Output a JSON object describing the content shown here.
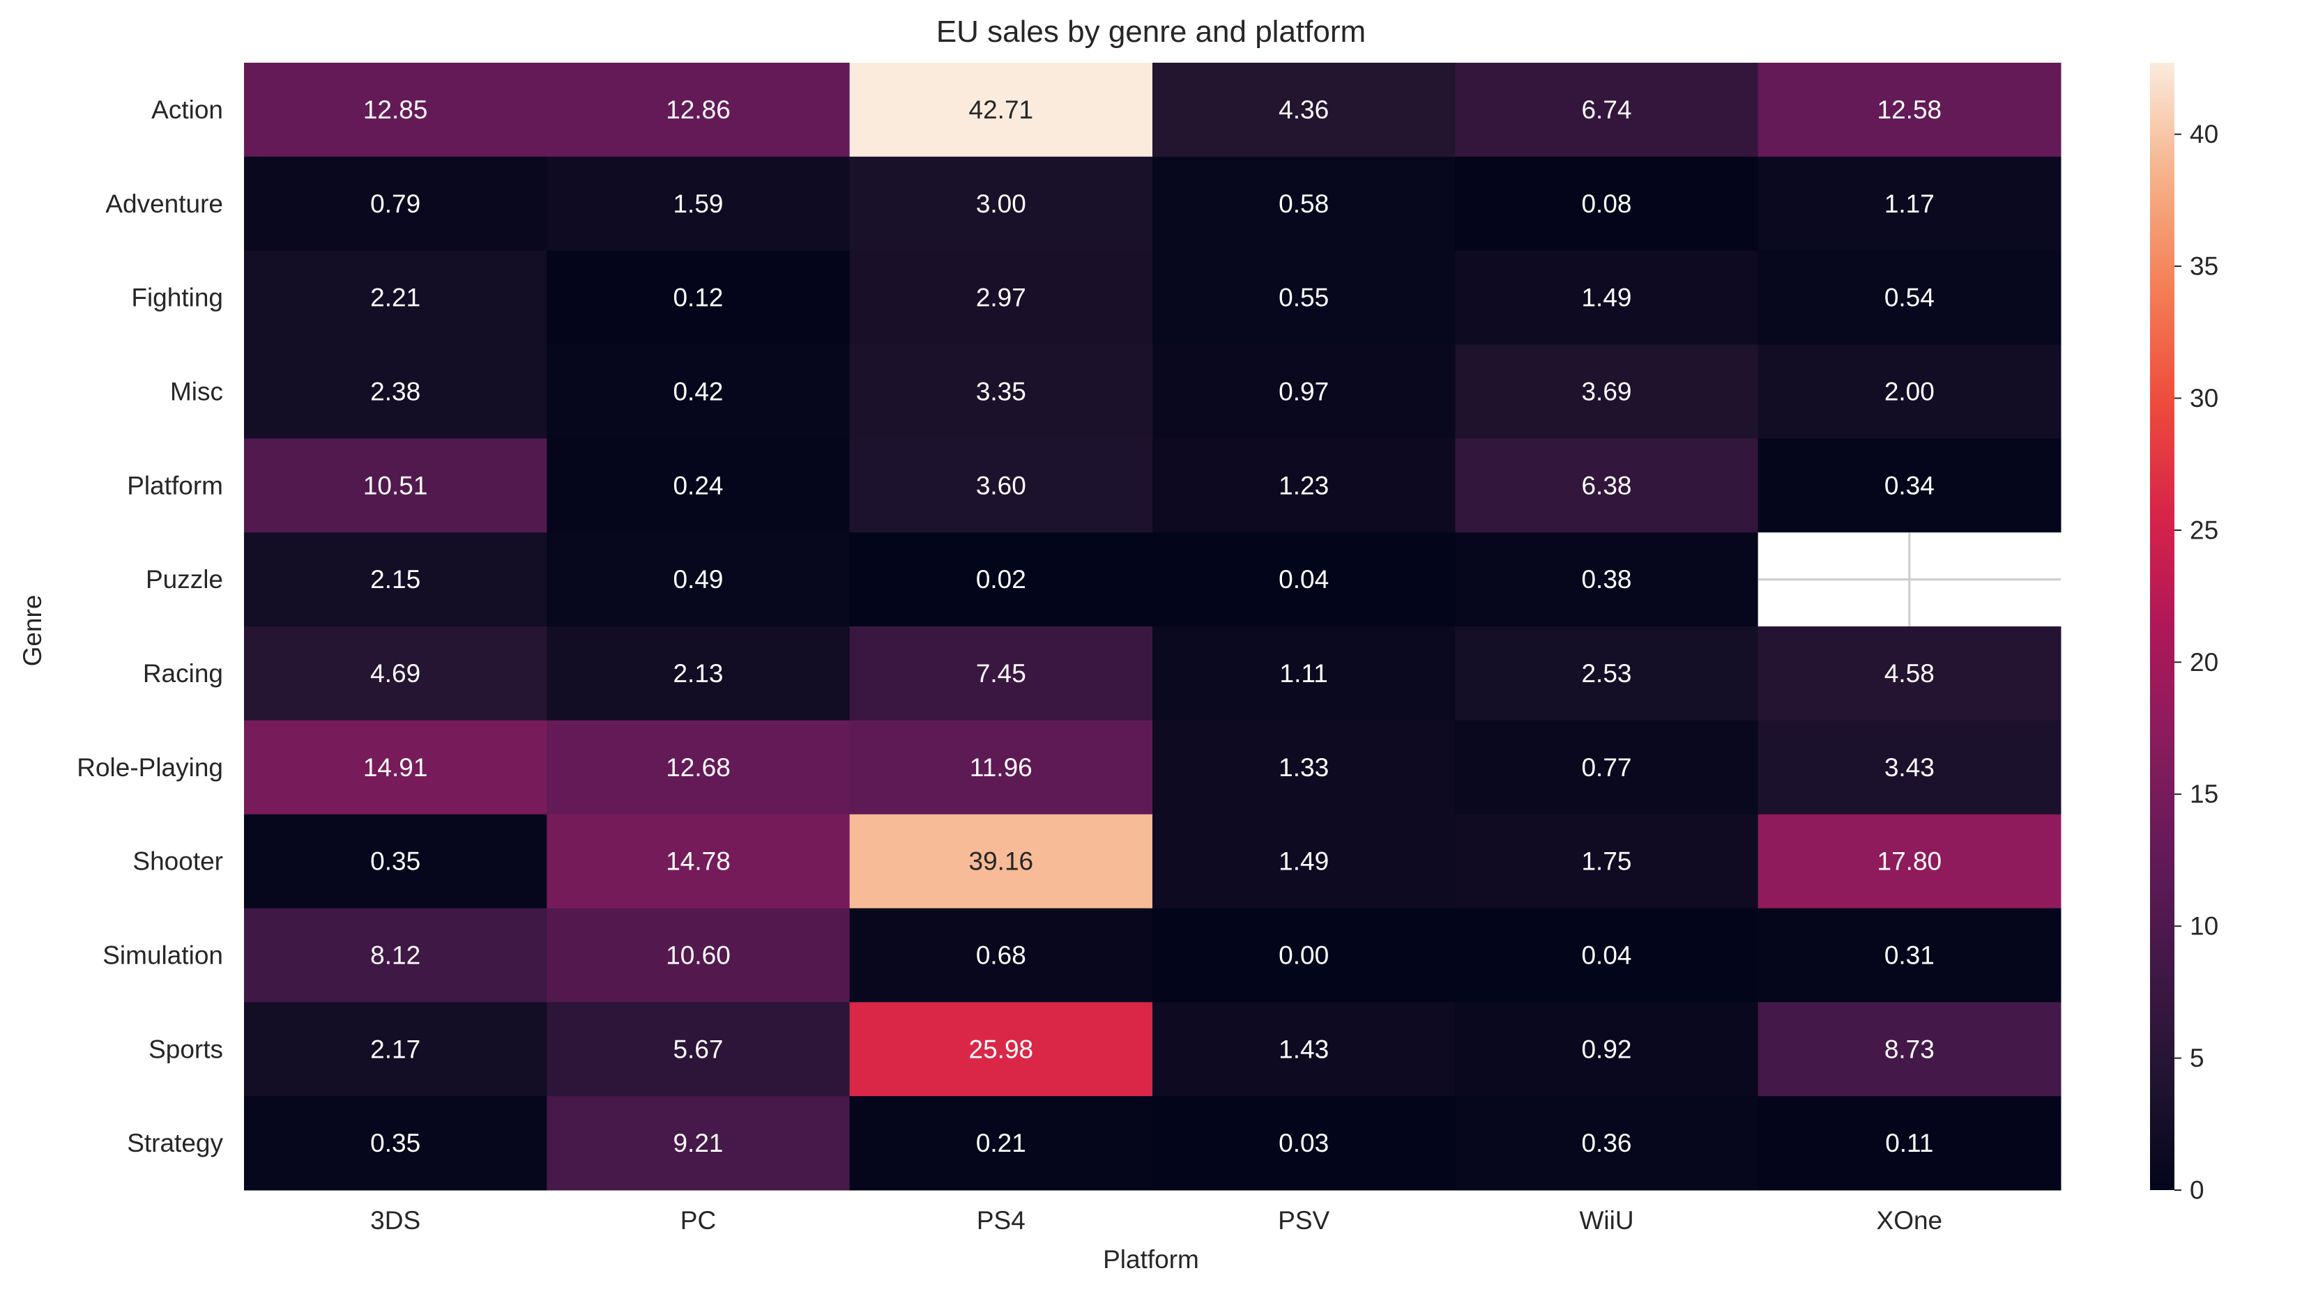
{
  "chart_data": {
    "type": "heatmap",
    "title": "EU sales by genre and platform",
    "xlabel": "Platform",
    "ylabel": "Genre",
    "x_categories": [
      "3DS",
      "PC",
      "PS4",
      "PSV",
      "WiiU",
      "XOne"
    ],
    "y_categories": [
      "Action",
      "Adventure",
      "Fighting",
      "Misc",
      "Platform",
      "Puzzle",
      "Racing",
      "Role-Playing",
      "Shooter",
      "Simulation",
      "Sports",
      "Strategy"
    ],
    "values": [
      [
        12.85,
        12.86,
        42.71,
        4.36,
        6.74,
        12.58
      ],
      [
        0.79,
        1.59,
        3.0,
        0.58,
        0.08,
        1.17
      ],
      [
        2.21,
        0.12,
        2.97,
        0.55,
        1.49,
        0.54
      ],
      [
        2.38,
        0.42,
        3.35,
        0.97,
        3.69,
        2.0
      ],
      [
        10.51,
        0.24,
        3.6,
        1.23,
        6.38,
        0.34
      ],
      [
        2.15,
        0.49,
        0.02,
        0.04,
        0.38,
        null
      ],
      [
        4.69,
        2.13,
        7.45,
        1.11,
        2.53,
        4.58
      ],
      [
        14.91,
        12.68,
        11.96,
        1.33,
        0.77,
        3.43
      ],
      [
        0.35,
        14.78,
        39.16,
        1.49,
        1.75,
        17.8
      ],
      [
        8.12,
        10.6,
        0.68,
        0.0,
        0.04,
        0.31
      ],
      [
        2.17,
        5.67,
        25.98,
        1.43,
        0.92,
        8.73
      ],
      [
        0.35,
        9.21,
        0.21,
        0.03,
        0.36,
        0.11
      ]
    ],
    "labels": [
      [
        "12.85",
        "12.86",
        "42.71",
        "4.36",
        "6.74",
        "12.58"
      ],
      [
        "0.79",
        "1.59",
        "3.00",
        "0.58",
        "0.08",
        "1.17"
      ],
      [
        "2.21",
        "0.12",
        "2.97",
        "0.55",
        "1.49",
        "0.54"
      ],
      [
        "2.38",
        "0.42",
        "3.35",
        "0.97",
        "3.69",
        "2.00"
      ],
      [
        "10.51",
        "0.24",
        "3.60",
        "1.23",
        "6.38",
        "0.34"
      ],
      [
        "2.15",
        "0.49",
        "0.02",
        "0.04",
        "0.38",
        ""
      ],
      [
        "4.69",
        "2.13",
        "7.45",
        "1.11",
        "2.53",
        "4.58"
      ],
      [
        "14.91",
        "12.68",
        "11.96",
        "1.33",
        "0.77",
        "3.43"
      ],
      [
        "0.35",
        "14.78",
        "39.16",
        "1.49",
        "1.75",
        "17.80"
      ],
      [
        "8.12",
        "10.60",
        "0.68",
        "0.00",
        "0.04",
        "0.31"
      ],
      [
        "2.17",
        "5.67",
        "25.98",
        "1.43",
        "0.92",
        "8.73"
      ],
      [
        "0.35",
        "9.21",
        "0.21",
        "0.03",
        "0.36",
        "0.11"
      ]
    ],
    "colorbar": {
      "vmin": 0,
      "vmax": 42.71,
      "ticks": [
        0,
        5,
        10,
        15,
        20,
        25,
        30,
        35,
        40
      ],
      "colormap": "rocket"
    },
    "missing_cell_style": "blank with light gridlines",
    "grid": false
  },
  "colors": {
    "text": "#262626",
    "background": "#ffffff",
    "missing_grid": "#cccccc",
    "light_text": "#ffffff",
    "dark_text": "#262626"
  }
}
